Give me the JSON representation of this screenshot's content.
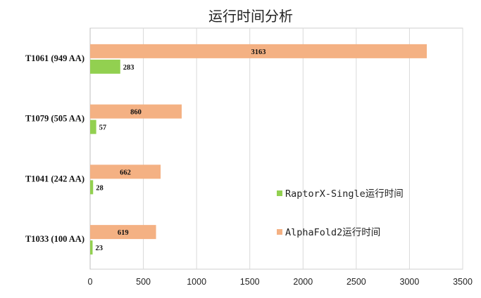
{
  "chart_data": {
    "type": "bar",
    "orientation": "horizontal",
    "title": "运行时间分析",
    "categories": [
      "T1061 (949 AA)",
      "T1079 (505 AA)",
      "T1041 (242 AA)",
      "T1033 (100 AA)"
    ],
    "series": [
      {
        "name": "AlphaFold2运行时间",
        "color": "#F4B183",
        "values": [
          3163,
          860,
          662,
          619
        ]
      },
      {
        "name": "RaptorX-Single运行时间",
        "color": "#92D050",
        "values": [
          283,
          57,
          28,
          23
        ]
      }
    ],
    "xlim": [
      0,
      3500
    ],
    "xticks": [
      "0",
      "500",
      "1000",
      "1500",
      "2000",
      "2500",
      "3000",
      "3500"
    ],
    "xlabel": "",
    "ylabel": "",
    "grid": true,
    "legend_position": "center-right",
    "legend_order": [
      "RaptorX-Single运行时间",
      "AlphaFold2运行时间"
    ]
  }
}
